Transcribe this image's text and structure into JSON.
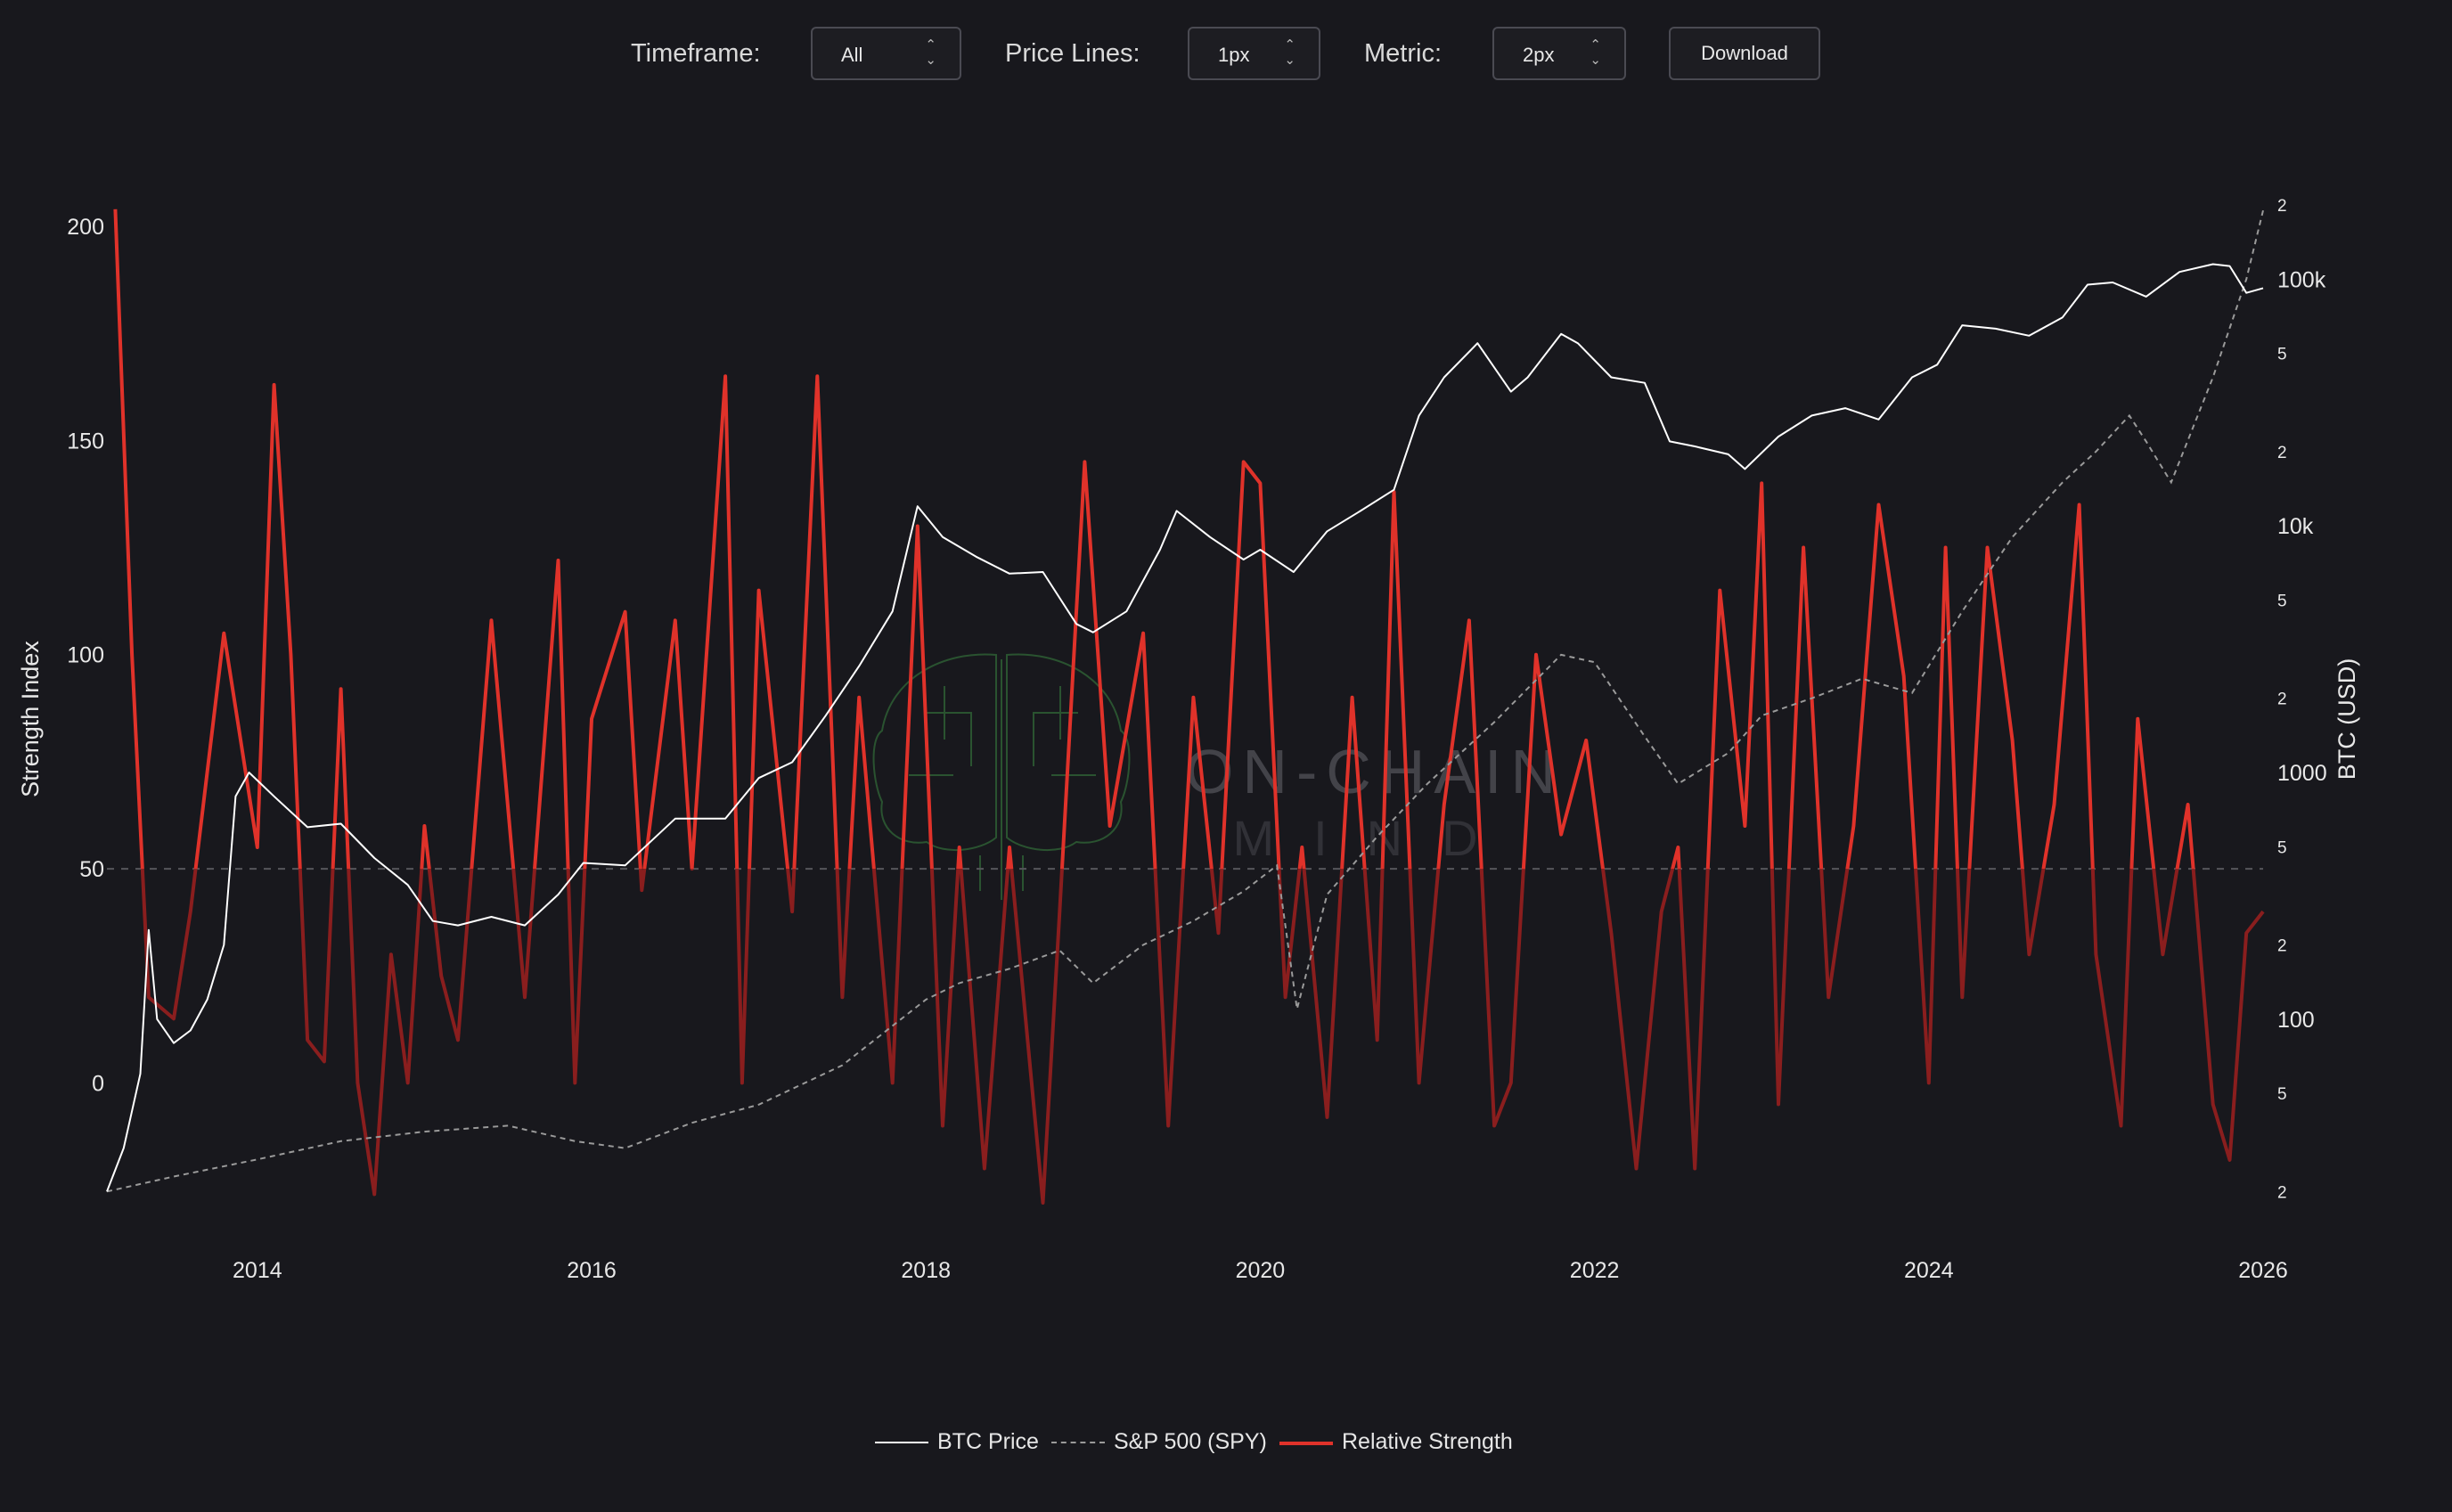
{
  "controls": {
    "timeframe_label": "Timeframe:",
    "timeframe_value": "All",
    "price_lines_label": "Price Lines:",
    "price_lines_value": "1px",
    "metric_label": "Metric:",
    "metric_value": "2px",
    "download_label": "Download",
    "arrow_glyph": "⌃⌄"
  },
  "watermark": {
    "line1": "ON-CHAIN",
    "line2": "MIND",
    "icon": "brain-circuit-icon"
  },
  "colors": {
    "background": "#18181d",
    "btc": "#ffffff",
    "spy": "#9a9a9a",
    "rs": "#e0322a",
    "rs_dim": "#8a1e1e",
    "grid": "#5a5a5a"
  },
  "chart_data": {
    "type": "line",
    "xlabel": "",
    "ylabel": "Strength Index",
    "y2label": "BTC (USD)",
    "x_ticks": [
      "2014",
      "2016",
      "2018",
      "2020",
      "2022",
      "2024",
      "2026"
    ],
    "xlim": [
      2013.1,
      2026.0
    ],
    "ylim_left": [
      -28,
      205
    ],
    "y_ticks_left": [
      0,
      50,
      100,
      150,
      200
    ],
    "y_scale_right": "log",
    "ylim_right": [
      18,
      200000
    ],
    "y_ticks_right_major": [
      "100",
      "1000",
      "10k",
      "100k"
    ],
    "y_ticks_right_major_values": [
      100,
      1000,
      10000,
      100000
    ],
    "y_ticks_right_minor": [
      "2",
      "5",
      "2",
      "5",
      "2",
      "5",
      "2",
      "5",
      "2"
    ],
    "y_ticks_right_minor_values": [
      20,
      50,
      200,
      500,
      2000,
      5000,
      20000,
      50000,
      200000
    ],
    "reference_line": 50,
    "legend_position": "bottom",
    "series": [
      {
        "name": "BTC Price",
        "axis": "right",
        "style": "solid",
        "x": [
          2013.1,
          2013.2,
          2013.3,
          2013.35,
          2013.4,
          2013.5,
          2013.6,
          2013.7,
          2013.8,
          2013.87,
          2013.95,
          2014.1,
          2014.3,
          2014.5,
          2014.7,
          2014.9,
          2015.05,
          2015.2,
          2015.4,
          2015.6,
          2015.8,
          2015.95,
          2016.2,
          2016.5,
          2016.8,
          2017.0,
          2017.2,
          2017.4,
          2017.6,
          2017.8,
          2017.95,
          2018.1,
          2018.3,
          2018.5,
          2018.7,
          2018.9,
          2019.0,
          2019.2,
          2019.4,
          2019.5,
          2019.7,
          2019.9,
          2020.0,
          2020.2,
          2020.4,
          2020.6,
          2020.8,
          2020.95,
          2021.1,
          2021.3,
          2021.5,
          2021.6,
          2021.8,
          2021.9,
          2022.1,
          2022.3,
          2022.45,
          2022.6,
          2022.8,
          2022.9,
          2023.1,
          2023.3,
          2023.5,
          2023.7,
          2023.9,
          2024.05,
          2024.2,
          2024.4,
          2024.6,
          2024.8,
          2024.95,
          2025.1,
          2025.3,
          2025.5,
          2025.7,
          2025.8,
          2025.9,
          2026.0
        ],
        "y": [
          20,
          30,
          60,
          230,
          100,
          80,
          90,
          120,
          200,
          800,
          1000,
          800,
          600,
          620,
          450,
          350,
          250,
          240,
          260,
          240,
          320,
          430,
          420,
          650,
          650,
          950,
          1100,
          1700,
          2700,
          4500,
          12000,
          9000,
          7500,
          6400,
          6500,
          4000,
          3700,
          4500,
          8000,
          11500,
          9000,
          7300,
          8000,
          6500,
          9500,
          11500,
          14000,
          28000,
          40000,
          55000,
          35000,
          40000,
          60000,
          55000,
          40000,
          38000,
          22000,
          21000,
          19500,
          17000,
          23000,
          28000,
          30000,
          27000,
          40000,
          45000,
          65000,
          63000,
          59000,
          70000,
          95000,
          97000,
          85000,
          107000,
          115000,
          113000,
          88000,
          92000
        ]
      },
      {
        "name": "S&P 500 (SPY)",
        "axis": "right",
        "style": "dashed",
        "x": [
          2013.1,
          2013.5,
          2014.0,
          2014.5,
          2015.0,
          2015.5,
          2015.9,
          2016.2,
          2016.6,
          2017.0,
          2017.5,
          2018.0,
          2018.2,
          2018.5,
          2018.8,
          2019.0,
          2019.3,
          2019.6,
          2019.9,
          2020.1,
          2020.22,
          2020.4,
          2020.7,
          2021.0,
          2021.4,
          2021.8,
          2022.0,
          2022.3,
          2022.5,
          2022.8,
          2023.0,
          2023.3,
          2023.6,
          2023.9,
          2024.2,
          2024.5,
          2024.8,
          2025.0,
          2025.2,
          2025.3,
          2025.45,
          2025.7,
          2025.9,
          2026.0
        ],
        "y": [
          20,
          23,
          27,
          32,
          35,
          37,
          32,
          30,
          38,
          45,
          65,
          120,
          140,
          160,
          190,
          140,
          200,
          250,
          330,
          420,
          110,
          320,
          550,
          900,
          1600,
          3000,
          2800,
          1400,
          900,
          1200,
          1700,
          2000,
          2400,
          2100,
          4500,
          9000,
          15000,
          20000,
          28000,
          22000,
          15000,
          40000,
          100000,
          190000
        ]
      },
      {
        "name": "Relative Strength",
        "axis": "left",
        "style": "solid",
        "x": [
          2013.15,
          2013.25,
          2013.35,
          2013.5,
          2013.6,
          2013.8,
          2013.9,
          2014.0,
          2014.1,
          2014.2,
          2014.3,
          2014.4,
          2014.5,
          2014.6,
          2014.7,
          2014.8,
          2014.9,
          2015.0,
          2015.1,
          2015.2,
          2015.4,
          2015.6,
          2015.8,
          2015.9,
          2016.0,
          2016.2,
          2016.3,
          2016.5,
          2016.6,
          2016.8,
          2016.9,
          2017.0,
          2017.2,
          2017.35,
          2017.5,
          2017.6,
          2017.8,
          2017.95,
          2018.1,
          2018.2,
          2018.35,
          2018.5,
          2018.7,
          2018.8,
          2018.95,
          2019.1,
          2019.3,
          2019.45,
          2019.6,
          2019.75,
          2019.9,
          2020.0,
          2020.15,
          2020.25,
          2020.4,
          2020.55,
          2020.7,
          2020.8,
          2020.95,
          2021.1,
          2021.25,
          2021.4,
          2021.5,
          2021.65,
          2021.8,
          2021.95,
          2022.1,
          2022.25,
          2022.4,
          2022.5,
          2022.6,
          2022.75,
          2022.9,
          2023.0,
          2023.1,
          2023.25,
          2023.4,
          2023.55,
          2023.7,
          2023.85,
          2024.0,
          2024.1,
          2024.2,
          2024.35,
          2024.5,
          2024.6,
          2024.75,
          2024.9,
          2025.0,
          2025.15,
          2025.25,
          2025.4,
          2025.55,
          2025.7,
          2025.8,
          2025.9,
          2026.0
        ],
        "y": [
          204,
          100,
          20,
          15,
          40,
          105,
          80,
          55,
          163,
          100,
          10,
          5,
          92,
          0,
          -26,
          30,
          0,
          60,
          25,
          10,
          108,
          20,
          122,
          0,
          85,
          110,
          45,
          108,
          50,
          165,
          0,
          115,
          40,
          165,
          20,
          90,
          0,
          130,
          -10,
          55,
          -20,
          55,
          -28,
          40,
          145,
          60,
          105,
          -10,
          90,
          35,
          145,
          140,
          20,
          55,
          -8,
          90,
          10,
          138,
          0,
          65,
          108,
          -10,
          0,
          100,
          58,
          80,
          35,
          -20,
          40,
          55,
          -20,
          115,
          60,
          140,
          -5,
          125,
          20,
          60,
          135,
          95,
          0,
          125,
          20,
          125,
          80,
          30,
          65,
          135,
          30,
          -10,
          85,
          30,
          65,
          -5,
          -18,
          35,
          40
        ]
      }
    ]
  },
  "legend": [
    {
      "label": "BTC Price"
    },
    {
      "label": "S&P 500 (SPY)"
    },
    {
      "label": "Relative Strength"
    }
  ]
}
